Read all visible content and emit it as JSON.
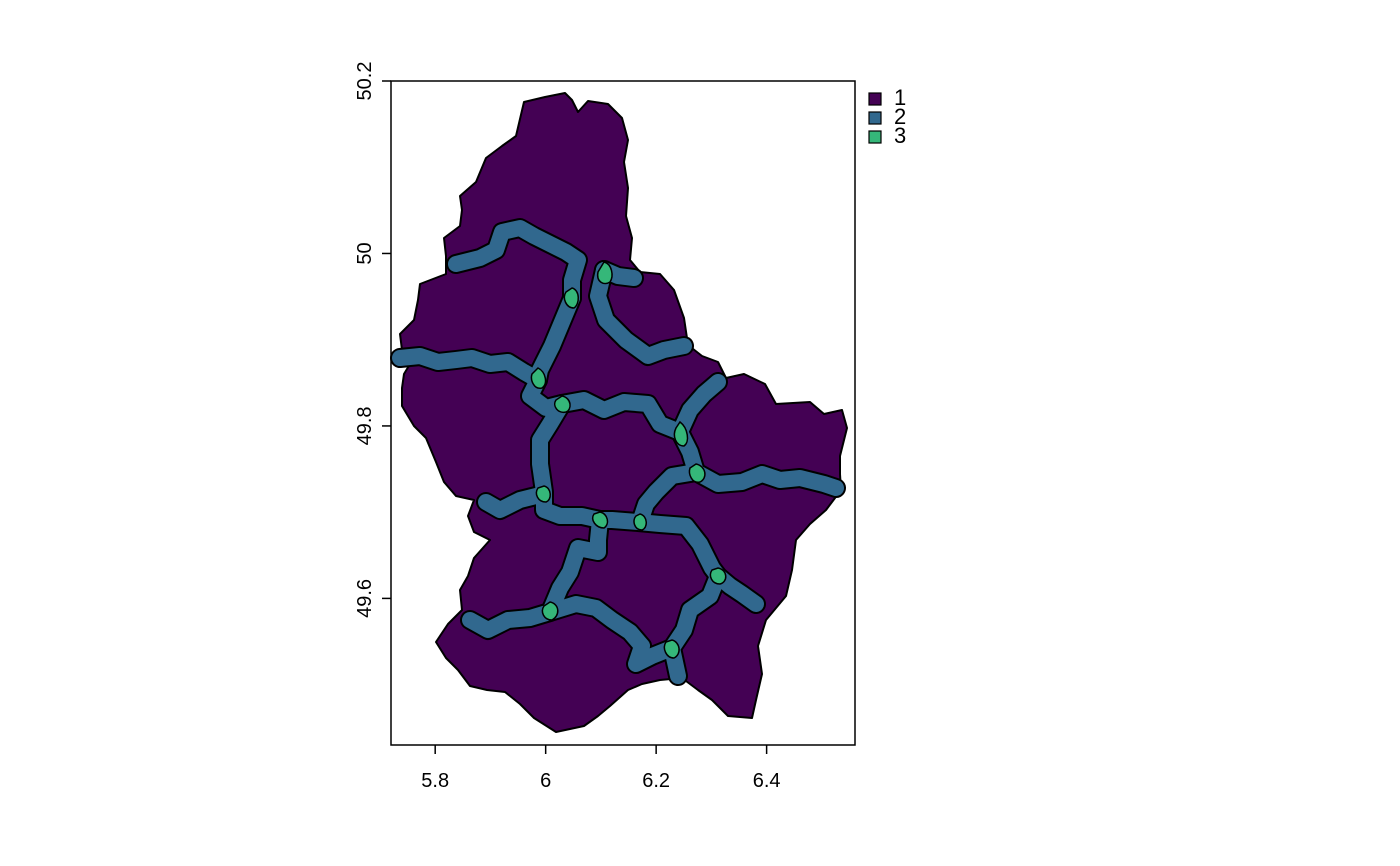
{
  "map": {
    "x_ticks": [
      "5.8",
      "6",
      "6.2",
      "6.4"
    ],
    "y_ticks": [
      "49.6",
      "49.8",
      "50",
      "50.2"
    ],
    "x_tick_values": [
      5.8,
      6.0,
      6.2,
      6.4
    ],
    "y_tick_values": [
      49.6,
      49.8,
      50.0,
      50.2
    ],
    "xlim": [
      5.72,
      6.56
    ],
    "ylim": [
      49.43,
      50.2
    ],
    "legend": {
      "placement": "top-right-outside",
      "items": [
        {
          "label": "1",
          "color": "#440154"
        },
        {
          "label": "2",
          "color": "#31688e"
        },
        {
          "label": "3",
          "color": "#35b779"
        }
      ]
    }
  }
}
